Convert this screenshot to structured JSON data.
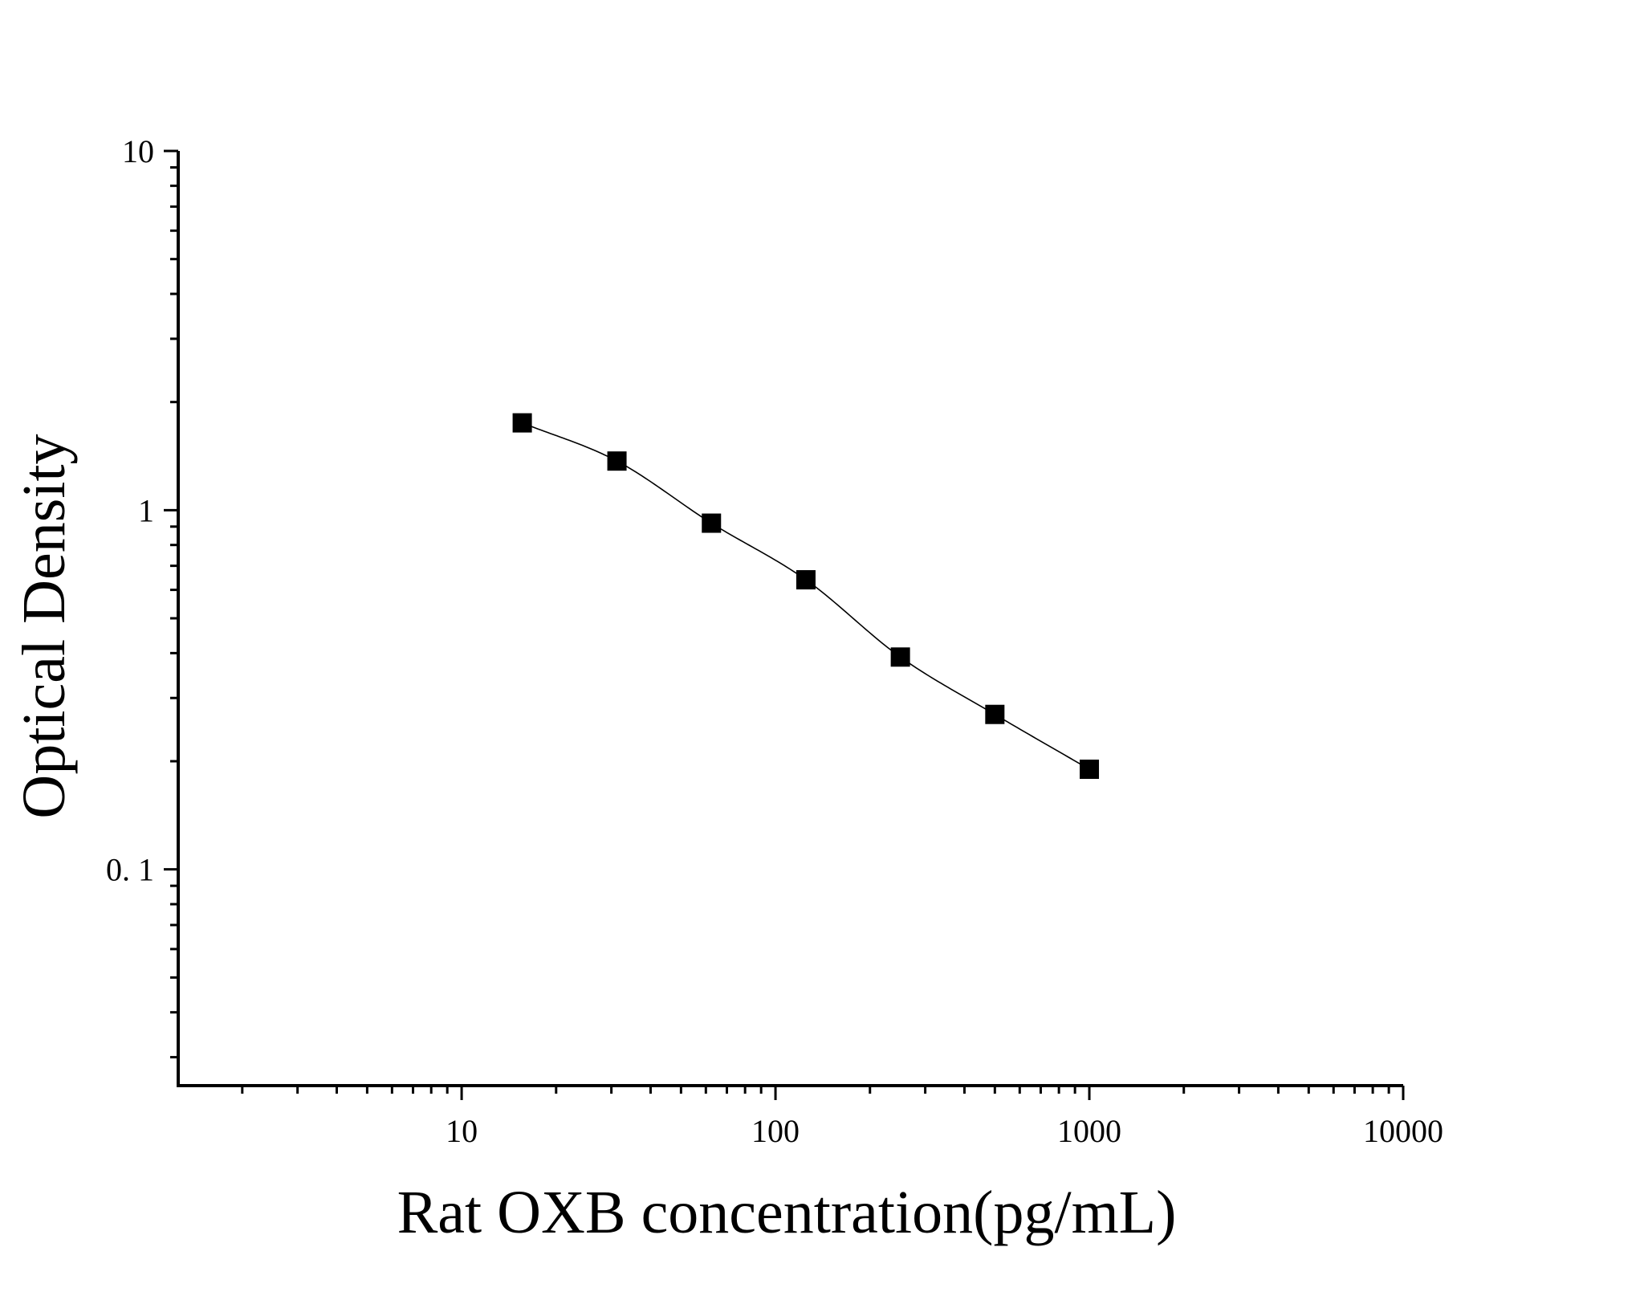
{
  "chart_data": {
    "type": "scatter",
    "title": "",
    "xlabel": "Rat OXB concentration(pg/mL)",
    "ylabel": "Optical Density",
    "x_scale": "log",
    "y_scale": "log",
    "xlim": [
      1.25,
      10000
    ],
    "ylim": [
      0.025,
      10
    ],
    "x_tick_labels": [
      "10",
      "100",
      "1000",
      "10000"
    ],
    "y_tick_labels": [
      "0. 1",
      "1",
      "10"
    ],
    "grid": false,
    "legend": "none",
    "marker": "square",
    "color": "#000000",
    "series": [
      {
        "x": [
          15.6,
          31.25,
          62.5,
          125,
          250,
          500,
          1000
        ],
        "y": [
          1.75,
          1.37,
          0.92,
          0.64,
          0.39,
          0.27,
          0.19
        ]
      }
    ],
    "fit_curve": true
  }
}
